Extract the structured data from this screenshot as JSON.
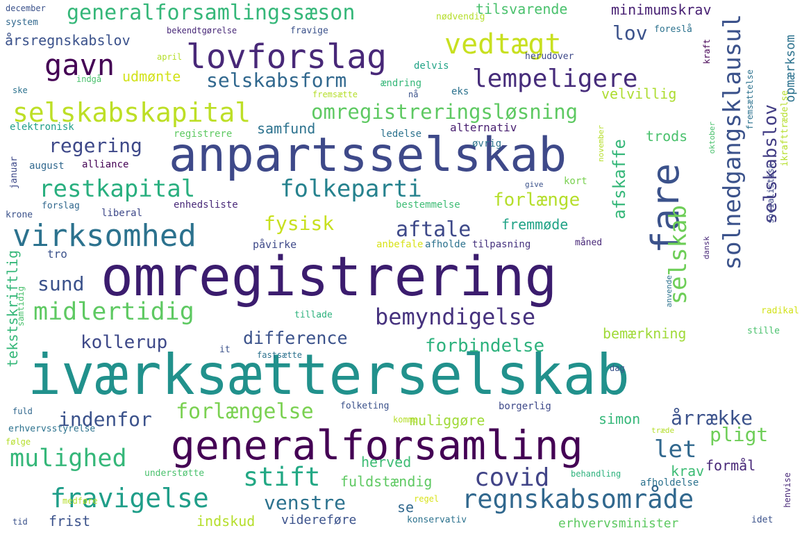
{
  "words": [
    {
      "text": "iværksætterselskab",
      "color": "#21918c"
    },
    {
      "text": "omregistrering",
      "color": "#3b1c6e"
    },
    {
      "text": "anpartsselskab",
      "color": "#3e4989"
    },
    {
      "text": "generalforsamling",
      "color": "#440154"
    },
    {
      "text": "lovforslag",
      "color": "#482878"
    },
    {
      "text": "regnskabsområde",
      "color": "#31688e"
    },
    {
      "text": "virksomhed",
      "color": "#2c728e"
    },
    {
      "text": "selskabskapital",
      "color": "#bddf26"
    },
    {
      "text": "omregistreringsløsning",
      "color": "#5ec962"
    },
    {
      "text": "generalforsamlingssæson",
      "color": "#35b779"
    },
    {
      "text": "vedtægt",
      "color": "#c8e020"
    },
    {
      "text": "gavn",
      "color": "#440154"
    },
    {
      "text": "lempeligere",
      "color": "#472d7b"
    },
    {
      "text": "selskabsform",
      "color": "#31688e"
    },
    {
      "text": "fare",
      "color": "#3b528b"
    },
    {
      "text": "folkeparti",
      "color": "#26828e"
    },
    {
      "text": "restkapital",
      "color": "#29af7f"
    },
    {
      "text": "solnedgangsklausul",
      "color": "#3b528b"
    },
    {
      "text": "selskabslov",
      "color": "#433e85"
    },
    {
      "text": "midlertidig",
      "color": "#5ec962"
    },
    {
      "text": "bemyndigelse",
      "color": "#46327e"
    },
    {
      "text": "fravigelse",
      "color": "#1f9e89"
    },
    {
      "text": "mulighed",
      "color": "#35b779"
    },
    {
      "text": "stift",
      "color": "#22a884"
    },
    {
      "text": "covid",
      "color": "#414487"
    },
    {
      "text": "forlængelse",
      "color": "#7ad151"
    },
    {
      "text": "selskab",
      "color": "#6ece58"
    },
    {
      "text": "aftale",
      "color": "#3e4989"
    },
    {
      "text": "fysisk",
      "color": "#c8e020"
    },
    {
      "text": "regering",
      "color": "#3e4989"
    },
    {
      "text": "forlænge",
      "color": "#b5de2b"
    },
    {
      "text": "difference",
      "color": "#3b528b"
    },
    {
      "text": "kollerup",
      "color": "#3e4989"
    },
    {
      "text": "forbindelse",
      "color": "#2db27d"
    },
    {
      "text": "indenfor",
      "color": "#3b528b"
    },
    {
      "text": "årrække",
      "color": "#3b528b"
    },
    {
      "text": "pligt",
      "color": "#6ece58"
    },
    {
      "text": "let",
      "color": "#31688e"
    },
    {
      "text": "venstre",
      "color": "#2c728e"
    },
    {
      "text": "lov",
      "color": "#3b528b"
    },
    {
      "text": "afskaffe",
      "color": "#35b779"
    },
    {
      "text": "sund",
      "color": "#3b528b"
    },
    {
      "text": "udmønte",
      "color": "#d2e21b"
    },
    {
      "text": "minimumskrav",
      "color": "#482173"
    },
    {
      "text": "tilsvarende",
      "color": "#4ac16d"
    },
    {
      "text": "årsregnskabslov",
      "color": "#3b528b"
    },
    {
      "text": "opmærksom",
      "color": "#2c728e"
    },
    {
      "text": "fremmøde",
      "color": "#20a386"
    },
    {
      "text": "velvillig",
      "color": "#addc30"
    },
    {
      "text": "samfund",
      "color": "#2c728e"
    },
    {
      "text": "trods",
      "color": "#4ac16d"
    },
    {
      "text": "alternativ",
      "color": "#481f70"
    },
    {
      "text": "tekstskriftlig",
      "color": "#35b779"
    },
    {
      "text": "herved",
      "color": "#3dbc74"
    },
    {
      "text": "fuldstændig",
      "color": "#5ec962"
    },
    {
      "text": "muliggøre",
      "color": "#a0da39"
    },
    {
      "text": "simon",
      "color": "#35b779"
    },
    {
      "text": "bemærkning",
      "color": "#a0da39"
    },
    {
      "text": "formål",
      "color": "#482878"
    },
    {
      "text": "krav",
      "color": "#3dbc74"
    },
    {
      "text": "frist",
      "color": "#3b528b"
    },
    {
      "text": "se",
      "color": "#31688e"
    },
    {
      "text": "indskud",
      "color": "#b5de2b"
    },
    {
      "text": "videreføre",
      "color": "#3b528b"
    },
    {
      "text": "erhvervsminister",
      "color": "#5ec962"
    },
    {
      "text": "tilpasning",
      "color": "#46327e"
    },
    {
      "text": "afholde",
      "color": "#2c728e"
    },
    {
      "text": "anbefale",
      "color": "#d8e219"
    },
    {
      "text": "påvirke",
      "color": "#3e4989"
    },
    {
      "text": "tro",
      "color": "#3b528b"
    },
    {
      "text": "bestemmelse",
      "color": "#3dbc74"
    },
    {
      "text": "enhedsliste",
      "color": "#482878"
    },
    {
      "text": "liberal",
      "color": "#3e4989"
    },
    {
      "text": "forslag",
      "color": "#31688e"
    },
    {
      "text": "krone",
      "color": "#3b528b"
    },
    {
      "text": "alliance",
      "color": "#440154"
    },
    {
      "text": "august",
      "color": "#31688e"
    },
    {
      "text": "januar",
      "color": "#3e4989"
    },
    {
      "text": "elektronisk",
      "color": "#1f9e89"
    },
    {
      "text": "registrere",
      "color": "#5ec962"
    },
    {
      "text": "ledelse",
      "color": "#2c728e"
    },
    {
      "text": "øvrig",
      "color": "#2c728e"
    },
    {
      "text": "kort",
      "color": "#7ad151"
    },
    {
      "text": "give",
      "color": "#3b528b"
    },
    {
      "text": "måned",
      "color": "#482878"
    },
    {
      "text": "eks",
      "color": "#2c728e"
    },
    {
      "text": "nå",
      "color": "#3b528b"
    },
    {
      "text": "ændring",
      "color": "#35b779"
    },
    {
      "text": "fremsætte",
      "color": "#b5de2b"
    },
    {
      "text": "delvis",
      "color": "#20a386"
    },
    {
      "text": "indgå",
      "color": "#4ac16d"
    },
    {
      "text": "ske",
      "color": "#2c728e"
    },
    {
      "text": "april",
      "color": "#b5de2b"
    },
    {
      "text": "bekendtgørelse",
      "color": "#482878"
    },
    {
      "text": "fravige",
      "color": "#3b528b"
    },
    {
      "text": "nødvendig",
      "color": "#b5de2b"
    },
    {
      "text": "herudover",
      "color": "#3e4989"
    },
    {
      "text": "foreslå",
      "color": "#2c728e"
    },
    {
      "text": "system",
      "color": "#31688e"
    },
    {
      "text": "december",
      "color": "#3b528b"
    },
    {
      "text": "fremsættelse",
      "color": "#2c728e"
    },
    {
      "text": "ikrafttrædelse",
      "color": "#b5de2b"
    },
    {
      "text": "kraft",
      "color": "#440154"
    },
    {
      "text": "socialistisk",
      "color": "#3e4989"
    },
    {
      "text": "november",
      "color": "#b5de2b"
    },
    {
      "text": "oktober",
      "color": "#4ac16d"
    },
    {
      "text": "dansk",
      "color": "#482878"
    },
    {
      "text": "anvende",
      "color": "#2c728e"
    },
    {
      "text": "radikal",
      "color": "#d2e21b"
    },
    {
      "text": "stille",
      "color": "#4ac16d"
    },
    {
      "text": "tillade",
      "color": "#2db27d"
    },
    {
      "text": "it",
      "color": "#3b528b"
    },
    {
      "text": "fastsætte",
      "color": "#2c728e"
    },
    {
      "text": "dag",
      "color": "#3b528b"
    },
    {
      "text": "samtidig",
      "color": "#4ac16d"
    },
    {
      "text": "fuld",
      "color": "#31688e"
    },
    {
      "text": "erhvervsstyrelse",
      "color": "#2c728e"
    },
    {
      "text": "følge",
      "color": "#b5de2b"
    },
    {
      "text": "folketing",
      "color": "#3b528b"
    },
    {
      "text": "borgerlig",
      "color": "#3e4989"
    },
    {
      "text": "komme",
      "color": "#b5de2b"
    },
    {
      "text": "træde",
      "color": "#b5de2b"
    },
    {
      "text": "understøtte",
      "color": "#4ac16d"
    },
    {
      "text": "behandling",
      "color": "#2db27d"
    },
    {
      "text": "afholdelse",
      "color": "#2c728e"
    },
    {
      "text": "henvise",
      "color": "#482878"
    },
    {
      "text": "medføre",
      "color": "#b5de2b"
    },
    {
      "text": "regel",
      "color": "#d8e219"
    },
    {
      "text": "tid",
      "color": "#3b528b"
    },
    {
      "text": "konservativ",
      "color": "#2c728e"
    },
    {
      "text": "idet",
      "color": "#3b528b"
    }
  ]
}
